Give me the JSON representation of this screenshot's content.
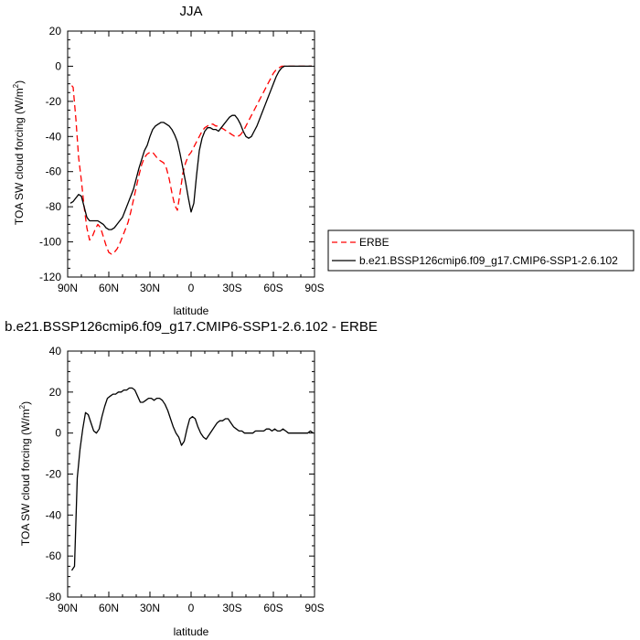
{
  "chart_data": [
    {
      "type": "line",
      "title": "JJA",
      "xlabel": "latitude",
      "ylabel": "TOA SW cloud forcing (W/m",
      "ylabel_sup": "2",
      "ylabel_tail": ")",
      "xlim": [
        90,
        -90
      ],
      "ylim": [
        -120,
        20
      ],
      "xticks": [
        90,
        60,
        30,
        0,
        -30,
        -60,
        -90
      ],
      "xticklabels": [
        "90N",
        "60N",
        "30N",
        "0",
        "30S",
        "60S",
        "90S"
      ],
      "yticks": [
        -120,
        -100,
        -80,
        -60,
        -40,
        -20,
        0,
        20
      ],
      "yticklabels": [
        "-120",
        "-100",
        "-80",
        "-60",
        "-40",
        "-20",
        "0",
        "20"
      ],
      "grid": false,
      "legend_position": "right",
      "series": [
        {
          "name": "ERBE",
          "color": "#ff0000",
          "dash": "dashed",
          "x": [
            87,
            86,
            84,
            82,
            80,
            78,
            76,
            74,
            72,
            70,
            68,
            66,
            64,
            62,
            60,
            58,
            56,
            54,
            52,
            50,
            48,
            46,
            44,
            42,
            40,
            38,
            36,
            34,
            32,
            30,
            28,
            26,
            24,
            22,
            20,
            18,
            16,
            14,
            12,
            10,
            8,
            6,
            4,
            2,
            0,
            -2,
            -4,
            -6,
            -8,
            -10,
            -12,
            -14,
            -16,
            -18,
            -20,
            -22,
            -24,
            -26,
            -28,
            -30,
            -32,
            -34,
            -36,
            -38,
            -40,
            -42,
            -44,
            -46,
            -48,
            -50,
            -52,
            -54,
            -56,
            -58,
            -60,
            -62,
            -64,
            -66,
            -68,
            -70,
            -72,
            -74,
            -76,
            -78,
            -80,
            -82,
            -84,
            -86,
            -88
          ],
          "y": [
            -11,
            -12,
            -30,
            -52,
            -65,
            -80,
            -92,
            -99,
            -97,
            -93,
            -90,
            -92,
            -97,
            -102,
            -106,
            -107,
            -106,
            -104,
            -101,
            -97,
            -93,
            -89,
            -83,
            -76,
            -69,
            -62,
            -56,
            -52,
            -50,
            -49,
            -49,
            -51,
            -53,
            -54,
            -55,
            -58,
            -64,
            -72,
            -79,
            -82,
            -72,
            -61,
            -55,
            -51,
            -49,
            -46,
            -43,
            -40,
            -37,
            -35,
            -34,
            -33,
            -33,
            -34,
            -34,
            -35,
            -36,
            -37,
            -38,
            -39,
            -40,
            -40,
            -39,
            -37,
            -34,
            -31,
            -28,
            -25,
            -22,
            -19,
            -16,
            -13,
            -10,
            -7,
            -4,
            -2,
            -1,
            0,
            0,
            0,
            0,
            0,
            0,
            0,
            0,
            0,
            0,
            0,
            0
          ]
        },
        {
          "name": "b.e21.BSSP126cmip6.f09_g17.CMIP6-SSP1-2.6.102",
          "color": "#000000",
          "dash": "solid",
          "x": [
            88,
            86,
            84,
            82,
            80,
            78,
            76,
            74,
            72,
            70,
            68,
            66,
            64,
            62,
            60,
            58,
            56,
            54,
            52,
            50,
            48,
            46,
            44,
            42,
            40,
            38,
            36,
            34,
            32,
            30,
            28,
            26,
            24,
            22,
            20,
            18,
            16,
            14,
            12,
            10,
            8,
            6,
            4,
            2,
            0,
            -2,
            -4,
            -6,
            -8,
            -10,
            -12,
            -14,
            -16,
            -18,
            -20,
            -22,
            -24,
            -26,
            -28,
            -30,
            -32,
            -34,
            -36,
            -38,
            -40,
            -42,
            -44,
            -46,
            -48,
            -50,
            -52,
            -54,
            -56,
            -58,
            -60,
            -62,
            -64,
            -66,
            -68,
            -70,
            -72,
            -74,
            -76,
            -78,
            -80,
            -82,
            -84,
            -86,
            -88
          ],
          "y": [
            -78,
            -77,
            -75,
            -73,
            -74,
            -80,
            -86,
            -88,
            -88,
            -88,
            -88,
            -89,
            -90,
            -92,
            -93,
            -93,
            -92,
            -90,
            -88,
            -86,
            -82,
            -78,
            -74,
            -70,
            -64,
            -58,
            -53,
            -48,
            -45,
            -40,
            -36,
            -34,
            -33,
            -32,
            -32,
            -33,
            -34,
            -36,
            -39,
            -43,
            -50,
            -58,
            -66,
            -75,
            -83,
            -78,
            -62,
            -48,
            -41,
            -37,
            -35,
            -35,
            -36,
            -36,
            -37,
            -35,
            -33,
            -31,
            -29,
            -28,
            -28,
            -30,
            -33,
            -37,
            -40,
            -41,
            -40,
            -37,
            -34,
            -30,
            -26,
            -22,
            -18,
            -14,
            -10,
            -6,
            -3,
            -1,
            0,
            0,
            0,
            0,
            0,
            0,
            0,
            0,
            0,
            0,
            0
          ]
        }
      ]
    },
    {
      "type": "line",
      "title": "b.e21.BSSP126cmip6.f09_g17.CMIP6-SSP1-2.6.102 - ERBE",
      "xlabel": "latitude",
      "ylabel": "TOA SW cloud forcing (W/m",
      "ylabel_sup": "2",
      "ylabel_tail": ")",
      "xlim": [
        90,
        -90
      ],
      "ylim": [
        -80,
        40
      ],
      "xticks": [
        90,
        60,
        30,
        0,
        -30,
        -60,
        -90
      ],
      "xticklabels": [
        "90N",
        "60N",
        "30N",
        "0",
        "30S",
        "60S",
        "90S"
      ],
      "yticks": [
        -80,
        -60,
        -40,
        -20,
        0,
        20,
        40
      ],
      "yticklabels": [
        "-80",
        "-60",
        "-40",
        "-20",
        "0",
        "20",
        "40"
      ],
      "grid": false,
      "series": [
        {
          "color": "#000000",
          "dash": "solid",
          "x": [
            87,
            85,
            83,
            81,
            79,
            77,
            75,
            73,
            71,
            69,
            67,
            65,
            63,
            61,
            59,
            57,
            55,
            53,
            51,
            49,
            47,
            45,
            43,
            41,
            39,
            37,
            35,
            33,
            31,
            29,
            27,
            25,
            23,
            21,
            19,
            17,
            15,
            13,
            11,
            9,
            7,
            5,
            3,
            1,
            -1,
            -3,
            -5,
            -7,
            -9,
            -11,
            -13,
            -15,
            -17,
            -19,
            -21,
            -23,
            -25,
            -27,
            -29,
            -31,
            -33,
            -35,
            -37,
            -39,
            -41,
            -43,
            -45,
            -47,
            -49,
            -51,
            -53,
            -55,
            -57,
            -59,
            -61,
            -63,
            -65,
            -67,
            -69,
            -71,
            -73,
            -75,
            -77,
            -79,
            -81,
            -83,
            -85,
            -87,
            -89
          ],
          "y": [
            -67,
            -65,
            -22,
            -8,
            2,
            10,
            9,
            5,
            1,
            0,
            2,
            8,
            13,
            17,
            18,
            19,
            19,
            20,
            20,
            21,
            21,
            22,
            22,
            21,
            18,
            15,
            15,
            16,
            17,
            17,
            16,
            17,
            17,
            16,
            14,
            11,
            7,
            3,
            0,
            -2,
            -6,
            -4,
            2,
            7,
            8,
            7,
            3,
            0,
            -2,
            -3,
            -1,
            1,
            3,
            5,
            6,
            6,
            7,
            7,
            5,
            3,
            2,
            1,
            1,
            0,
            0,
            0,
            0,
            1,
            1,
            1,
            1,
            2,
            2,
            1,
            2,
            1,
            1,
            2,
            1,
            0,
            0,
            0,
            0,
            0,
            0,
            0,
            0,
            1,
            0
          ]
        }
      ]
    }
  ]
}
